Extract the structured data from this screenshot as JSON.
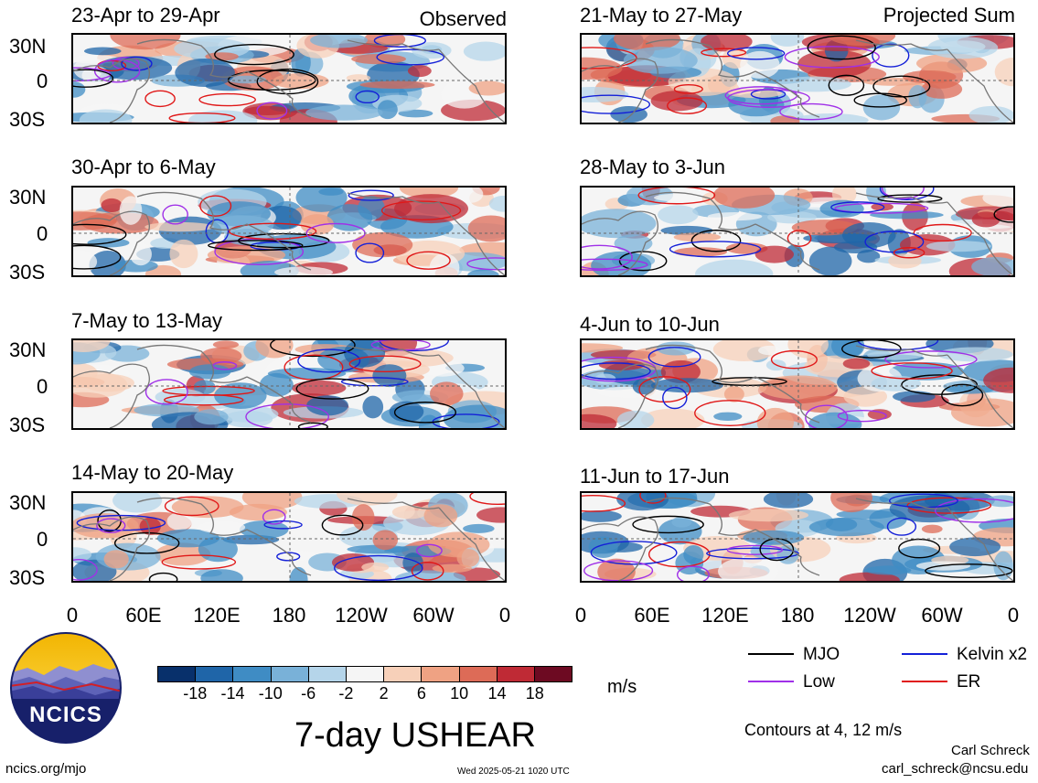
{
  "figure": {
    "title": "7-day USHEAR",
    "units": "m/s",
    "contours_note": "Contours at 4, 12 m/s",
    "observed_label": "Observed",
    "projected_label": "Projected Sum",
    "site_url": "ncics.org/mjo",
    "timestamp": "Wed 2025-05-21 1020 UTC",
    "author": "Carl Schreck",
    "email": "carl_schreck@ncsu.edu",
    "logo_text": "NCICS"
  },
  "panels_left": [
    {
      "period": "23-Apr to 29-Apr"
    },
    {
      "period": "30-Apr to 6-May"
    },
    {
      "period": "7-May to 13-May"
    },
    {
      "period": "14-May to 20-May"
    }
  ],
  "panels_right": [
    {
      "period": "21-May to 27-May"
    },
    {
      "period": "28-May to 3-Jun"
    },
    {
      "period": "4-Jun to 10-Jun"
    },
    {
      "period": "11-Jun to 17-Jun"
    }
  ],
  "lat_labels": [
    "30N",
    "0",
    "30S"
  ],
  "lon_labels": [
    "0",
    "60E",
    "120E",
    "180",
    "120W",
    "60W",
    "0"
  ],
  "colorbar": {
    "ticks": [
      "-18",
      "-14",
      "-10",
      "-6",
      "-2",
      "2",
      "6",
      "10",
      "14",
      "18"
    ],
    "colors": [
      "#08306b",
      "#1f65a8",
      "#3f8cc4",
      "#79b1d8",
      "#b5d5ea",
      "#f5f5f5",
      "#f7d0b9",
      "#efa283",
      "#dd6b57",
      "#bf2a35",
      "#6d0a22"
    ]
  },
  "legend": [
    {
      "label": "MJO",
      "color": "#000000"
    },
    {
      "label": "Kelvin x2",
      "color": "#1420d8"
    },
    {
      "label": "Low",
      "color": "#a030e8"
    },
    {
      "label": "ER",
      "color": "#e01818"
    }
  ]
}
